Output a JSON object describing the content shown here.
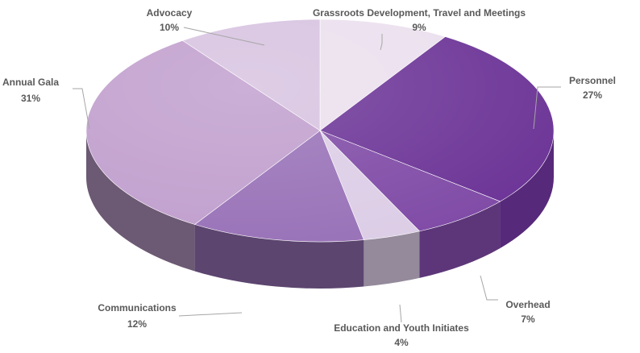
{
  "chart_data": {
    "type": "pie",
    "style": "3d-exploded-none",
    "start_angle_deg": -90,
    "direction": "clockwise",
    "slices": [
      {
        "label": "Grassroots Development, Travel and Meetings",
        "value": 9,
        "percent_label": "9%",
        "color": "#ebe0ee"
      },
      {
        "label": "Personnel",
        "value": 27,
        "percent_label": "27%",
        "color": "#6b3396"
      },
      {
        "label": "Overhead",
        "value": 7,
        "percent_label": "7%",
        "color": "#7f4aa6"
      },
      {
        "label": "Education and Youth Initiates",
        "value": 4,
        "percent_label": "4%",
        "color": "#dccde6"
      },
      {
        "label": "Communications",
        "value": 12,
        "percent_label": "12%",
        "color": "#9871b7"
      },
      {
        "label": "Annual Gala",
        "value": 31,
        "percent_label": "31%",
        "color": "#c09ecd"
      },
      {
        "label": "Advocacy",
        "value": 10,
        "percent_label": "10%",
        "color": "#d7c2e0"
      }
    ],
    "legend": "none",
    "data_labels": "outside-with-leader-lines"
  }
}
